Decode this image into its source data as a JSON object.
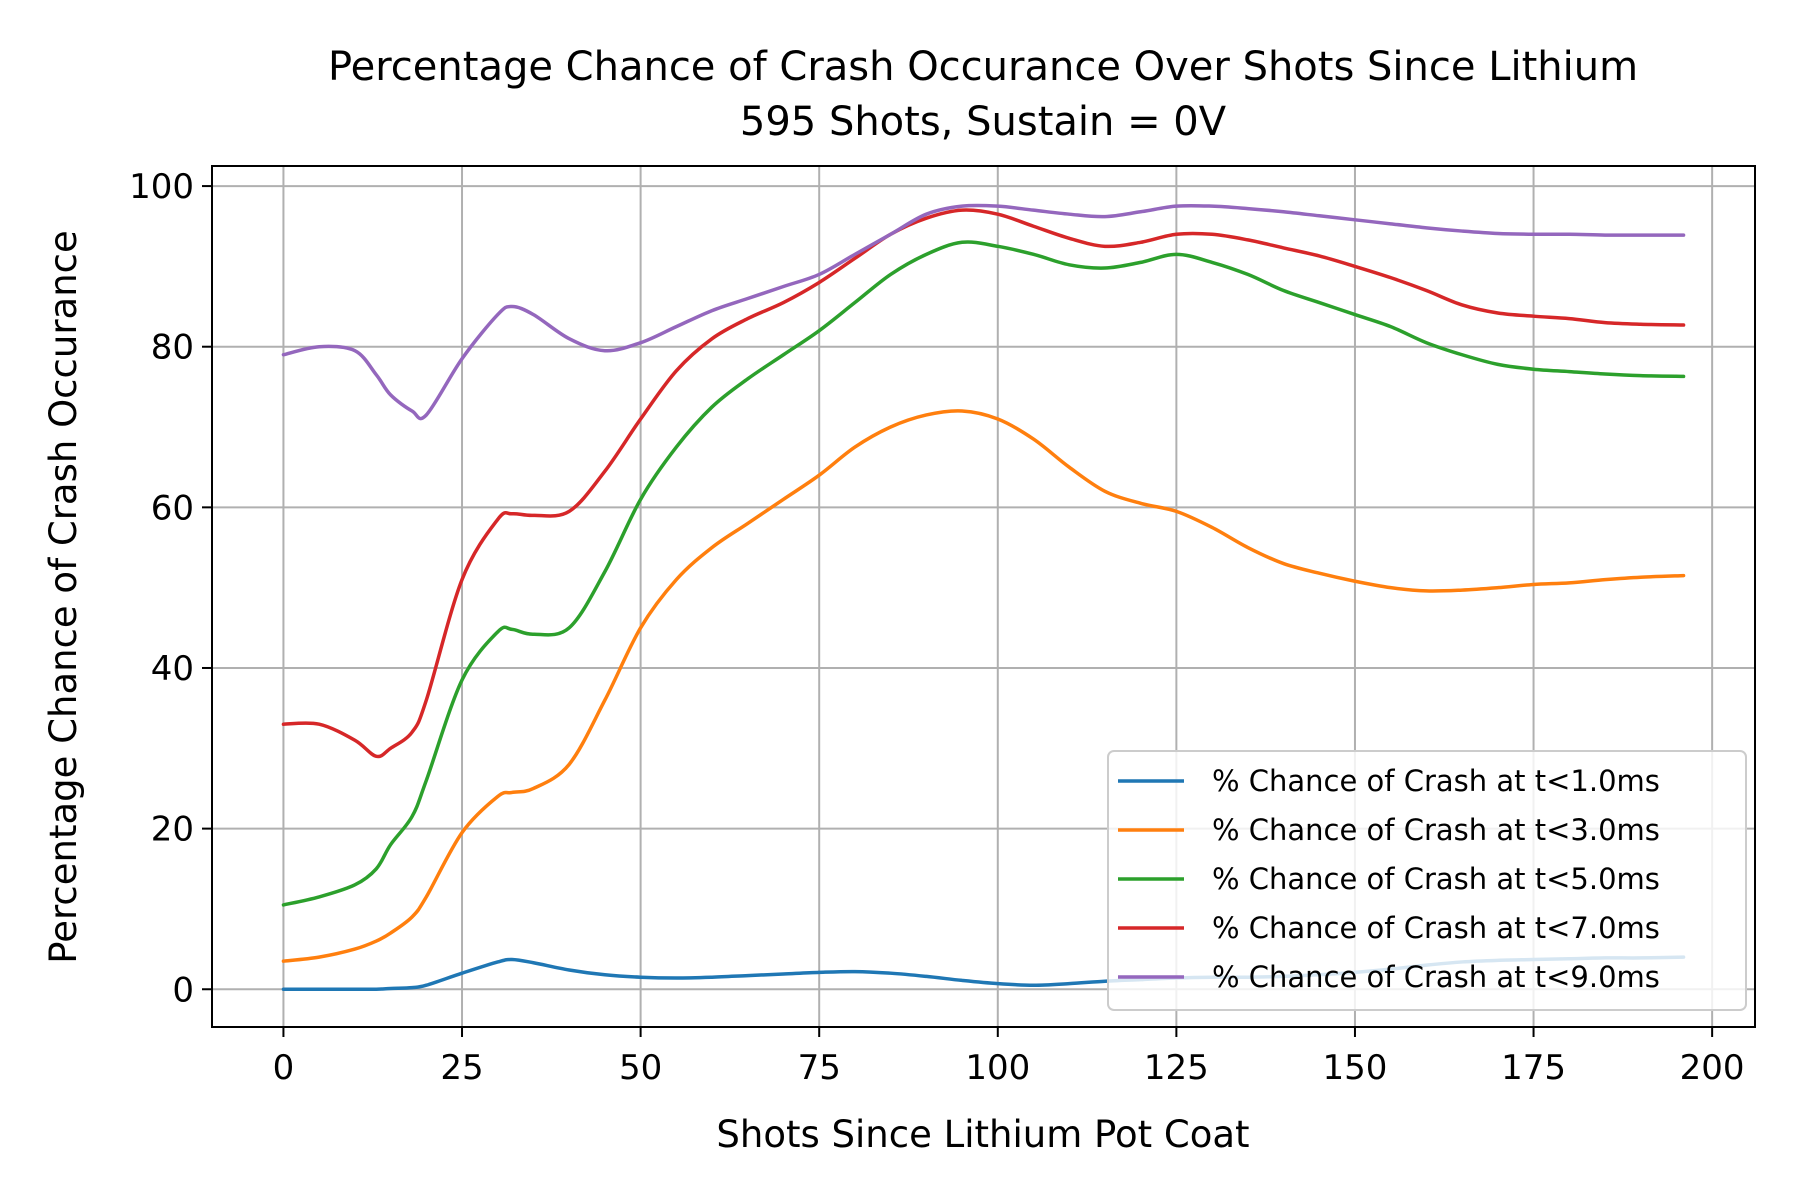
{
  "chart_data": {
    "type": "line",
    "title": "Percentage Chance of Crash Occurance Over Shots Since Lithium",
    "subtitle": "595 Shots, Sustain = 0V",
    "xlabel": "Shots Since Lithium Pot Coat",
    "ylabel": "Percentage Chance of Crash Occurance",
    "xlim": [
      -10,
      206
    ],
    "ylim": [
      -4.7,
      102.5
    ],
    "xticks": [
      0,
      25,
      50,
      75,
      100,
      125,
      150,
      175,
      200
    ],
    "yticks": [
      0,
      20,
      40,
      60,
      80,
      100
    ],
    "grid": true,
    "legend_position": "lower-right",
    "x": [
      0,
      5,
      10,
      13,
      15,
      18,
      20,
      25,
      30,
      32,
      35,
      40,
      45,
      50,
      55,
      60,
      65,
      70,
      75,
      80,
      85,
      90,
      95,
      100,
      105,
      110,
      115,
      120,
      125,
      130,
      135,
      140,
      145,
      150,
      155,
      160,
      165,
      170,
      175,
      180,
      185,
      190,
      196
    ],
    "series": [
      {
        "name": "% Chance of Crash at t<1.0ms",
        "color": "#1f77b4",
        "values": [
          0.0,
          0.0,
          0.0,
          0.0,
          0.1,
          0.2,
          0.5,
          2.0,
          3.4,
          3.7,
          3.3,
          2.4,
          1.8,
          1.5,
          1.4,
          1.5,
          1.7,
          1.9,
          2.1,
          2.2,
          2.0,
          1.6,
          1.1,
          0.7,
          0.5,
          0.7,
          1.0,
          1.2,
          1.4,
          1.5,
          1.5,
          1.6,
          1.8,
          2.1,
          2.5,
          3.0,
          3.4,
          3.6,
          3.7,
          3.8,
          3.9,
          3.9,
          4.0
        ]
      },
      {
        "name": "% Chance of Crash at t<3.0ms",
        "color": "#ff7f0e",
        "values": [
          3.5,
          4.0,
          5.0,
          6.0,
          7.0,
          9.0,
          11.5,
          19.5,
          24.0,
          24.5,
          25.0,
          28.0,
          36.0,
          45.0,
          51.0,
          55.0,
          58.0,
          61.0,
          64.0,
          67.5,
          70.0,
          71.5,
          72.0,
          71.0,
          68.5,
          65.0,
          62.0,
          60.5,
          59.5,
          57.5,
          55.0,
          53.0,
          51.8,
          50.8,
          50.0,
          49.6,
          49.7,
          50.0,
          50.4,
          50.6,
          51.0,
          51.3,
          51.5
        ]
      },
      {
        "name": "% Chance of Crash at t<5.0ms",
        "color": "#2ca02c",
        "values": [
          10.5,
          11.5,
          13.0,
          15.0,
          18.0,
          21.5,
          26.0,
          38.5,
          44.5,
          44.8,
          44.2,
          45.0,
          52.0,
          61.0,
          67.5,
          72.5,
          76.0,
          79.0,
          82.0,
          85.5,
          89.0,
          91.5,
          93.0,
          92.5,
          91.5,
          90.2,
          89.8,
          90.5,
          91.5,
          90.5,
          89.0,
          87.0,
          85.5,
          84.0,
          82.5,
          80.5,
          79.0,
          77.8,
          77.2,
          76.9,
          76.6,
          76.4,
          76.3
        ]
      },
      {
        "name": "% Chance of Crash at t<7.0ms",
        "color": "#d62728",
        "values": [
          33.0,
          33.0,
          31.0,
          29.0,
          30.0,
          32.0,
          36.0,
          51.0,
          58.5,
          59.2,
          59.0,
          59.5,
          64.5,
          71.0,
          77.0,
          81.0,
          83.5,
          85.5,
          88.0,
          91.0,
          94.0,
          96.0,
          97.0,
          96.5,
          95.0,
          93.5,
          92.5,
          93.0,
          94.0,
          94.0,
          93.3,
          92.3,
          91.3,
          90.0,
          88.6,
          87.0,
          85.2,
          84.2,
          83.8,
          83.5,
          83.0,
          82.8,
          82.7
        ]
      },
      {
        "name": "% Chance of Crash at t<9.0ms",
        "color": "#9467bd",
        "values": [
          79.0,
          80.0,
          79.5,
          76.5,
          74.0,
          72.0,
          71.5,
          78.5,
          84.0,
          85.0,
          84.0,
          81.0,
          79.5,
          80.5,
          82.5,
          84.5,
          86.0,
          87.5,
          89.0,
          91.5,
          94.0,
          96.5,
          97.5,
          97.5,
          97.0,
          96.5,
          96.2,
          96.8,
          97.5,
          97.5,
          97.2,
          96.8,
          96.3,
          95.8,
          95.3,
          94.8,
          94.4,
          94.1,
          94.0,
          94.0,
          93.9,
          93.9,
          93.9
        ]
      }
    ]
  }
}
